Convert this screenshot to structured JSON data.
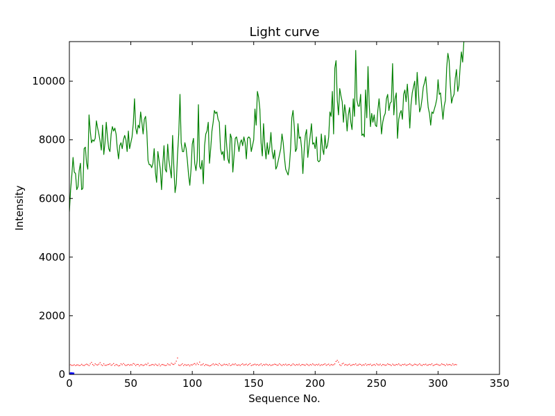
{
  "chart_data": {
    "type": "line",
    "title": "Light curve",
    "xlabel": "Sequence No.",
    "ylabel": "Intensity",
    "xlim": [
      0,
      350
    ],
    "ylim": [
      0,
      11350
    ],
    "xticks": [
      0,
      50,
      100,
      150,
      200,
      250,
      300,
      350
    ],
    "yticks": [
      0,
      2000,
      4000,
      6000,
      8000,
      10000
    ],
    "grid": false,
    "legend": "none",
    "series": [
      {
        "style": "line",
        "color": "#008000",
        "x_start": 0,
        "x_step": 1,
        "values": [
          5550,
          6300,
          6800,
          7400,
          6900,
          6850,
          6300,
          6400,
          6950,
          7200,
          6300,
          6350,
          7700,
          7750,
          7200,
          7000,
          8850,
          8300,
          7900,
          8000,
          7950,
          8050,
          8650,
          8400,
          8200,
          7950,
          7650,
          8500,
          7500,
          7900,
          8600,
          8100,
          7700,
          7600,
          8200,
          8450,
          8300,
          8400,
          8200,
          7700,
          7350,
          7800,
          7900,
          7700,
          8000,
          8150,
          8000,
          7600,
          8300,
          7700,
          7900,
          8100,
          8550,
          9400,
          8400,
          8200,
          8500,
          8400,
          8950,
          8600,
          8200,
          8700,
          8800,
          8300,
          7300,
          7150,
          7150,
          7050,
          7200,
          7700,
          6900,
          6550,
          7600,
          7300,
          7000,
          6300,
          7150,
          7800,
          7000,
          6900,
          7850,
          7300,
          7000,
          6700,
          8150,
          7100,
          6200,
          6500,
          7500,
          8200,
          9550,
          7900,
          7600,
          7600,
          7900,
          7700,
          7300,
          6800,
          6450,
          7000,
          7850,
          8050,
          7200,
          6950,
          7300,
          9200,
          7100,
          7000,
          7300,
          6500,
          7800,
          8200,
          8300,
          8600,
          7200,
          7700,
          8300,
          8600,
          9000,
          8900,
          8950,
          8700,
          8600,
          7700,
          7500,
          7600,
          7300,
          8500,
          7800,
          7350,
          7200,
          8200,
          8050,
          6900,
          7450,
          8050,
          8100,
          7900,
          7600,
          7900,
          8000,
          7800,
          8100,
          7900,
          7350,
          8050,
          8100,
          8050,
          7600,
          7800,
          8000,
          9050,
          8500,
          9650,
          9450,
          9050,
          7900,
          7450,
          8550,
          7800,
          7350,
          7900,
          7500,
          7750,
          8250,
          7600,
          7350,
          7650,
          7000,
          7100,
          7300,
          7500,
          7700,
          8200,
          7900,
          7400,
          7000,
          6900,
          6800,
          7100,
          7700,
          8750,
          9000,
          8450,
          7600,
          7700,
          8550,
          8050,
          8100,
          7700,
          6850,
          7600,
          8150,
          8350,
          7400,
          7800,
          8150,
          8550,
          7850,
          7900,
          7700,
          8100,
          7300,
          7250,
          7300,
          8200,
          7700,
          7500,
          8150,
          7700,
          7800,
          8100,
          8950,
          8800,
          9650,
          8200,
          10450,
          10700,
          9350,
          8850,
          9750,
          9500,
          9300,
          8600,
          9200,
          8900,
          8300,
          8850,
          9100,
          8600,
          8350,
          9400,
          8800,
          11050,
          9350,
          9150,
          9150,
          9550,
          8150,
          8200,
          8100,
          9700,
          8750,
          10500,
          9200,
          8450,
          8900,
          8600,
          8850,
          8500,
          8450,
          9000,
          9400,
          8900,
          8200,
          8600,
          8800,
          8900,
          9400,
          9550,
          9000,
          9250,
          9300,
          10600,
          8850,
          9400,
          9600,
          8050,
          8700,
          8900,
          9000,
          8700,
          9550,
          9700,
          9300,
          9900,
          9300,
          8400,
          9200,
          9600,
          9800,
          10000,
          9200,
          10300,
          9650,
          8950,
          9100,
          9400,
          9800,
          9950,
          10150,
          9600,
          9100,
          8900,
          8500,
          8950,
          8900,
          9050,
          9200,
          9400,
          10050,
          9550,
          9600,
          9150,
          8700,
          9150,
          9350,
          10450,
          10950,
          10700,
          9850,
          9250,
          9450,
          9550,
          10100,
          10400,
          9650,
          9850,
          10500,
          11000,
          10650,
          11350
        ]
      },
      {
        "style": "points",
        "color": "#ff0000",
        "x_start": 0,
        "x_step": 1,
        "values": [
          320,
          330,
          305,
          310,
          330,
          300,
          320,
          325,
          300,
          310,
          345,
          310,
          300,
          330,
          350,
          330,
          300,
          360,
          410,
          340,
          300,
          360,
          330,
          320,
          350,
          400,
          330,
          300,
          360,
          310,
          310,
          330,
          340,
          360,
          310,
          330,
          370,
          300,
          340,
          320,
          290,
          300,
          360,
          330,
          370,
          330,
          300,
          320,
          340,
          310,
          330,
          320,
          370,
          350,
          300,
          340,
          340,
          290,
          330,
          330,
          300,
          320,
          350,
          330,
          380,
          300,
          310,
          330,
          340,
          310,
          350,
          320,
          300,
          350,
          290,
          330,
          340,
          320,
          300,
          310,
          360,
          330,
          320,
          380,
          350,
          340,
          380,
          450,
          560,
          320,
          300,
          330,
          360,
          300,
          340,
          310,
          320,
          330,
          290,
          330,
          320,
          350,
          370,
          330,
          380,
          340,
          420,
          320,
          330,
          360,
          300,
          340,
          320,
          310,
          290,
          300,
          330,
          360,
          320,
          350,
          340,
          310,
          370,
          330,
          300,
          320,
          350,
          330,
          340,
          310,
          360,
          300,
          320,
          350,
          330,
          360,
          320,
          310,
          330,
          300,
          340,
          360,
          320,
          330,
          350,
          310,
          340,
          370,
          300,
          320,
          330,
          350,
          320,
          340,
          310,
          330,
          360,
          300,
          340,
          320,
          350,
          330,
          310,
          340,
          300,
          320,
          330,
          350,
          340,
          310,
          320,
          360,
          330,
          300,
          340,
          320,
          350,
          310,
          330,
          340,
          300,
          320,
          360,
          330,
          310,
          340,
          320,
          350,
          300,
          330,
          340,
          320,
          310,
          350,
          330,
          300,
          340,
          320,
          360,
          330,
          310,
          340,
          320,
          350,
          300,
          330,
          320,
          340,
          360,
          310,
          330,
          350,
          300,
          340,
          320,
          330,
          360,
          440,
          480,
          420,
          330,
          300,
          360,
          380,
          320,
          340,
          310,
          330,
          350,
          300,
          320,
          340,
          330,
          360,
          310,
          320,
          350,
          340,
          300,
          330,
          320,
          360,
          310,
          340,
          330,
          350,
          300,
          320,
          340,
          310,
          360,
          330,
          320,
          350,
          300,
          340,
          330,
          310,
          320,
          360,
          340,
          330,
          300,
          350,
          320,
          310,
          340,
          330,
          360,
          320,
          300,
          340,
          330,
          350,
          310,
          320,
          340,
          360,
          330,
          300,
          320,
          350,
          340,
          310,
          330,
          360,
          320,
          300,
          340,
          330,
          350,
          310,
          320,
          340,
          330,
          360,
          300,
          320,
          340,
          350,
          330,
          310,
          320,
          360,
          340,
          330,
          300,
          350,
          320,
          340,
          330,
          310,
          360,
          320,
          340,
          330
        ]
      },
      {
        "style": "line",
        "color": "#0000ff",
        "x_start": 0,
        "x_step": 1,
        "values": [
          30,
          40,
          40,
          35,
          30
        ]
      }
    ]
  }
}
